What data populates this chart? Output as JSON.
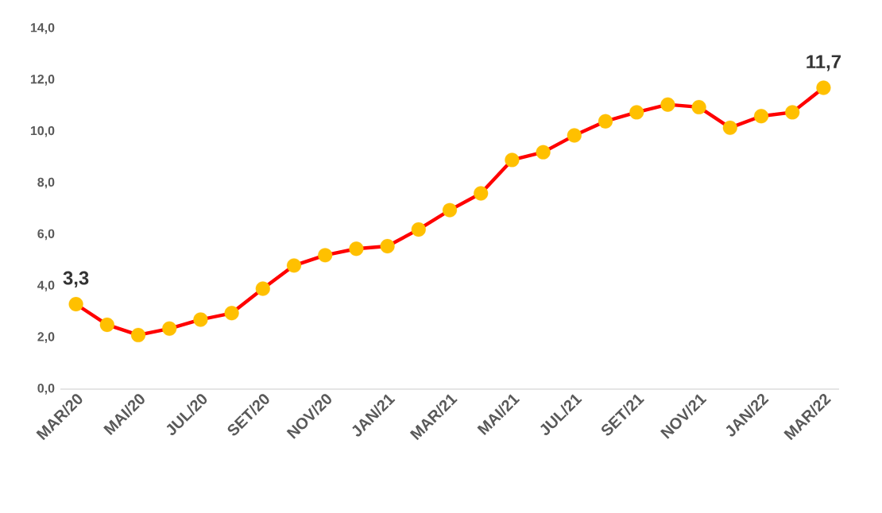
{
  "chart_data": {
    "type": "line",
    "categories": [
      "MAR/20",
      null,
      "MAI/20",
      null,
      "JUL/20",
      null,
      "SET/20",
      null,
      "NOV/20",
      null,
      "JAN/21",
      null,
      "MAR/21",
      null,
      "MAI/21",
      null,
      "JUL/21",
      null,
      "SET/21",
      null,
      "NOV/21",
      null,
      "JAN/22",
      null,
      "MAR/22"
    ],
    "series": [
      {
        "color": "#ff0000",
        "values": [
          3.3,
          2.5,
          2.1,
          2.35,
          2.7,
          2.95,
          3.9,
          4.8,
          5.2,
          5.45,
          5.55,
          6.2,
          6.95,
          7.6,
          8.9,
          9.2,
          9.85,
          10.4,
          10.75,
          11.05,
          10.95,
          10.15,
          10.6,
          10.75,
          11.7
        ],
        "colors": [
          "#ffc000",
          "#ffc000",
          "#ffc000",
          "#ffc000",
          "#ffc000",
          "#ffc000",
          "#ffc000",
          "#ffc000",
          "#ffc000",
          "#ffc000",
          "#ffc000",
          "#ffc000",
          "#ffc000",
          "#ffc000",
          "#ffc000",
          "#ffc000",
          "#ffc000",
          "#ffc000",
          "#ffc000",
          "#ffc000",
          "#ffc000",
          "#ffc000",
          "#ffc000",
          "#ffc000",
          "#ffc000"
        ],
        "value_labels": [
          "3,3",
          null,
          null,
          null,
          null,
          null,
          null,
          null,
          null,
          null,
          null,
          null,
          null,
          null,
          null,
          null,
          null,
          null,
          null,
          null,
          null,
          null,
          null,
          null,
          "11,7"
        ]
      }
    ],
    "marker": "circle",
    "line_style": "solid",
    "grid": false,
    "ylim": [
      0,
      14
    ],
    "yticks": [
      {
        "value": 0,
        "label": "0,0"
      },
      {
        "value": 2,
        "label": "2,0"
      },
      {
        "value": 4,
        "label": "4,0"
      },
      {
        "value": 6,
        "label": "6,0"
      },
      {
        "value": 8,
        "label": "8,0"
      },
      {
        "value": 10,
        "label": "10,0"
      },
      {
        "value": 12,
        "label": "12,0"
      },
      {
        "value": 14,
        "label": "14,0"
      }
    ]
  }
}
